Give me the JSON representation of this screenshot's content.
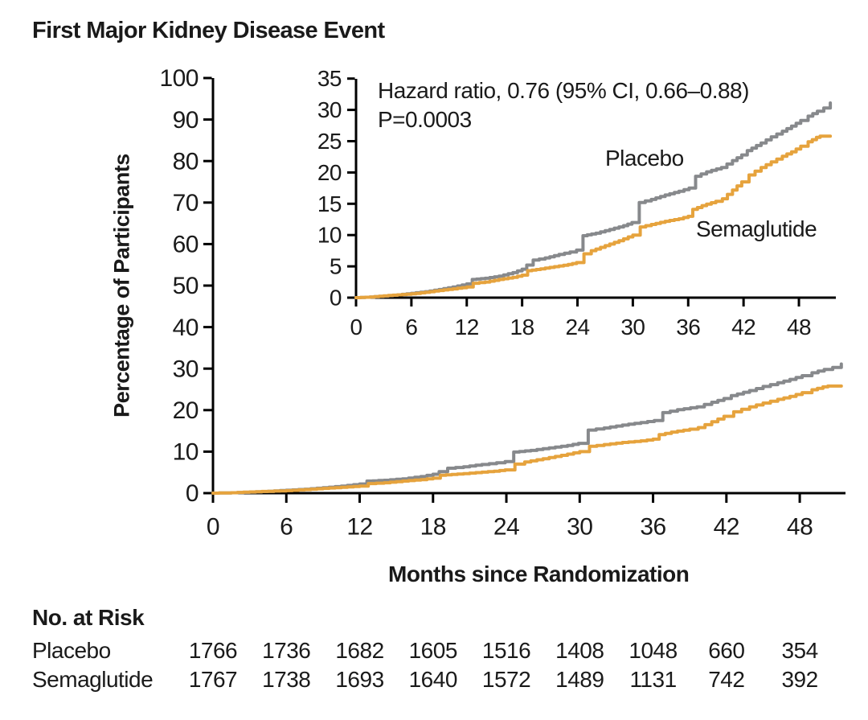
{
  "title": "First Major Kidney Disease Event",
  "colors": {
    "placebo_line": "#87898c",
    "semaglutide_line": "#e6a33d",
    "axis": "#000000",
    "text": "#1a1a1a",
    "background": "#ffffff"
  },
  "annotation": {
    "line1": "Hazard ratio, 0.76 (95% CI, 0.66–0.88)",
    "line2": "P=0.0003"
  },
  "chart_data": {
    "type": "line",
    "subtype": "kaplan-meier-cumulative-incidence-step",
    "title": "First Major Kidney Disease Event",
    "xlabel": "Months since Randomization",
    "ylabel": "Percentage of Participants",
    "x_ticks": [
      0,
      6,
      12,
      18,
      24,
      30,
      36,
      42,
      48
    ],
    "x_max": 51.4,
    "grid": false,
    "legend_position": "inline-labels",
    "main_axis": {
      "ylim": [
        0,
        100
      ],
      "yticks": [
        0,
        10,
        20,
        30,
        40,
        50,
        60,
        70,
        80,
        90,
        100
      ]
    },
    "inset_axis": {
      "ylim": [
        0,
        35
      ],
      "yticks": [
        0,
        5,
        10,
        15,
        20,
        25,
        30,
        35
      ]
    },
    "hazard_ratio": "0.76",
    "ci_95": "0.66–0.88",
    "p_value": "0.0003",
    "series": [
      {
        "name": "Placebo",
        "color": "#87898c",
        "points": [
          [
            0,
            0
          ],
          [
            1.5,
            0.1
          ],
          [
            3,
            0.25
          ],
          [
            4.5,
            0.45
          ],
          [
            6,
            0.7
          ],
          [
            7.5,
            0.95
          ],
          [
            9,
            1.3
          ],
          [
            10.5,
            1.7
          ],
          [
            12,
            2.2
          ],
          [
            12.6,
            2.9
          ],
          [
            14,
            3.1
          ],
          [
            15.5,
            3.45
          ],
          [
            17,
            4.0
          ],
          [
            18,
            4.55
          ],
          [
            18.5,
            5.2
          ],
          [
            19.2,
            6.0
          ],
          [
            20.5,
            6.35
          ],
          [
            22,
            6.9
          ],
          [
            23.2,
            7.3
          ],
          [
            23.9,
            7.6
          ],
          [
            24.6,
            9.9
          ],
          [
            26,
            10.3
          ],
          [
            27.5,
            10.9
          ],
          [
            29,
            11.5
          ],
          [
            29.9,
            12.0
          ],
          [
            30.7,
            15.2
          ],
          [
            32,
            15.7
          ],
          [
            33.5,
            16.4
          ],
          [
            35,
            17.0
          ],
          [
            36.1,
            17.5
          ],
          [
            36.8,
            19.4
          ],
          [
            38,
            20.1
          ],
          [
            39.6,
            20.8
          ],
          [
            40.8,
            21.9
          ],
          [
            41.8,
            22.8
          ],
          [
            42.4,
            23.5
          ],
          [
            43.9,
            24.7
          ],
          [
            45,
            25.7
          ],
          [
            46.2,
            26.6
          ],
          [
            47.2,
            27.4
          ],
          [
            48.2,
            28.3
          ],
          [
            49,
            29.0
          ],
          [
            50,
            29.8
          ],
          [
            50.7,
            30.3
          ],
          [
            51.4,
            31.1
          ]
        ]
      },
      {
        "name": "Semaglutide",
        "color": "#e6a33d",
        "points": [
          [
            0,
            0
          ],
          [
            1.5,
            0.1
          ],
          [
            3,
            0.3
          ],
          [
            4.5,
            0.45
          ],
          [
            6,
            0.6
          ],
          [
            7.5,
            0.85
          ],
          [
            9,
            1.15
          ],
          [
            10.5,
            1.4
          ],
          [
            12,
            1.7
          ],
          [
            12.7,
            2.3
          ],
          [
            14,
            2.5
          ],
          [
            15.5,
            2.9
          ],
          [
            17,
            3.25
          ],
          [
            18,
            3.6
          ],
          [
            18.6,
            4.3
          ],
          [
            20,
            4.6
          ],
          [
            21.5,
            4.95
          ],
          [
            23,
            5.3
          ],
          [
            23.9,
            5.6
          ],
          [
            24.7,
            7.0
          ],
          [
            25.5,
            7.5
          ],
          [
            27,
            8.3
          ],
          [
            28.5,
            9.1
          ],
          [
            30,
            10.0
          ],
          [
            30.8,
            11.3
          ],
          [
            32,
            11.7
          ],
          [
            33.5,
            12.2
          ],
          [
            35,
            12.6
          ],
          [
            36,
            13.0
          ],
          [
            36.5,
            14.1
          ],
          [
            37.5,
            14.7
          ],
          [
            39,
            15.4
          ],
          [
            39.7,
            15.8
          ],
          [
            40.8,
            17.2
          ],
          [
            41.8,
            18.5
          ],
          [
            42.6,
            19.6
          ],
          [
            43.9,
            20.8
          ],
          [
            45,
            21.7
          ],
          [
            46.2,
            22.6
          ],
          [
            47.2,
            23.3
          ],
          [
            48.2,
            24.2
          ],
          [
            49,
            24.9
          ],
          [
            49.9,
            25.6
          ],
          [
            50.3,
            25.8
          ],
          [
            51.4,
            25.8
          ]
        ]
      }
    ]
  },
  "curve_labels": {
    "placebo": "Placebo",
    "semaglutide": "Semaglutide"
  },
  "risk_table": {
    "header": "No. at Risk",
    "months": [
      0,
      6,
      12,
      18,
      24,
      30,
      36,
      42,
      48
    ],
    "rows": [
      {
        "label": "Placebo",
        "values": [
          "1766",
          "1736",
          "1682",
          "1605",
          "1516",
          "1408",
          "1048",
          "660",
          "354"
        ]
      },
      {
        "label": "Semaglutide",
        "values": [
          "1767",
          "1738",
          "1693",
          "1640",
          "1572",
          "1489",
          "1131",
          "742",
          "392"
        ]
      }
    ]
  }
}
